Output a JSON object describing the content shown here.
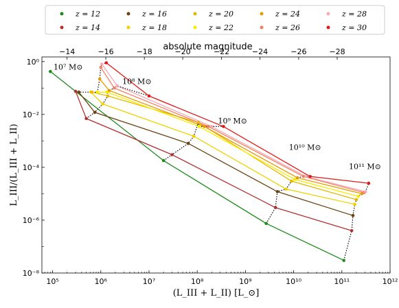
{
  "chart_data": {
    "type": "line",
    "xscale": "log",
    "yscale": "log",
    "xlabel": "(L_III + L_II) [L_⊙]",
    "ylabel": "L_III/(L_III + L_II)",
    "xlim": [
      60000,
      1000000000000
    ],
    "ylim": [
      1e-08,
      1.5
    ],
    "x_ticks": [
      {
        "value": 100000,
        "label": "10⁵"
      },
      {
        "value": 1000000,
        "label": "10⁶"
      },
      {
        "value": 10000000,
        "label": "10⁷"
      },
      {
        "value": 100000000,
        "label": "10⁸"
      },
      {
        "value": 1000000000,
        "label": "10⁹"
      },
      {
        "value": 10000000000,
        "label": "10¹⁰"
      },
      {
        "value": 100000000000,
        "label": "10¹¹"
      },
      {
        "value": 1000000000000,
        "label": "10¹²"
      }
    ],
    "y_ticks": [
      {
        "value": 1e-08,
        "label": "10⁻⁸"
      },
      {
        "value": 1e-06,
        "label": "10⁻⁶"
      },
      {
        "value": 0.0001,
        "label": "10⁻⁴"
      },
      {
        "value": 0.01,
        "label": "10⁻²"
      },
      {
        "value": 1,
        "label": "10⁰"
      }
    ],
    "top_axis": {
      "label": "absolute magnitude",
      "ticks": [
        {
          "value": -14,
          "label": "−14",
          "x": 200000
        },
        {
          "value": -16,
          "label": "−16",
          "x": 1270000
        },
        {
          "value": -18,
          "label": "−18",
          "x": 8000000
        },
        {
          "value": -20,
          "label": "−20",
          "x": 50000000
        },
        {
          "value": -22,
          "label": "−22",
          "x": 320000000
        },
        {
          "value": -24,
          "label": "−24",
          "x": 2000000000
        },
        {
          "value": -26,
          "label": "−26",
          "x": 12700000000
        },
        {
          "value": -28,
          "label": "−28",
          "x": 80000000000
        }
      ]
    },
    "mass_labels": [
      {
        "text": "10⁷ M⊙",
        "x": 105000,
        "y": 0.5
      },
      {
        "text": "10⁸ M⊙",
        "x": 2800000,
        "y": 0.14
      },
      {
        "text": "10⁹ M⊙",
        "x": 270000000,
        "y": 0.0045
      },
      {
        "text": "10¹⁰ M⊙",
        "x": 8000000000,
        "y": 0.00045
      },
      {
        "text": "10¹¹ M⊙",
        "x": 140000000000,
        "y": 8.5e-05
      }
    ],
    "legend_placement": "top",
    "series": [
      {
        "name": "z = 12",
        "color": "#1a8a1a",
        "x": [
          90000,
          20000000,
          2700000000,
          110000000000
        ],
        "y": [
          0.42,
          0.00018,
          7.5e-07,
          3e-08
        ]
      },
      {
        "name": "z = 14",
        "color": "#b03030",
        "x": [
          300000,
          500000,
          30000000,
          4200000000,
          160000000000
        ],
        "y": [
          0.075,
          0.007,
          0.0003,
          3e-06,
          4e-07
        ]
      },
      {
        "name": "z = 16",
        "color": "#6b4210",
        "x": [
          350000,
          750000,
          65000000,
          4600000000,
          170000000000
        ],
        "y": [
          0.07,
          0.012,
          0.0008,
          1.2e-05,
          1.5e-06
        ]
      },
      {
        "name": "z = 18",
        "color": "#f0d000",
        "x": [
          620000,
          1100000,
          85000000,
          7000000000,
          185000000000
        ],
        "y": [
          0.07,
          0.025,
          0.0015,
          1.5e-05,
          4e-06
        ]
      },
      {
        "name": "z = 20",
        "color": "#e8b800",
        "x": [
          650000,
          1400000,
          105000000,
          9000000000,
          200000000000
        ],
        "y": [
          0.07,
          0.05,
          0.005,
          3e-05,
          6e-06
        ]
      },
      {
        "name": "z = 22",
        "color": "#f7ec00",
        "x": [
          850000,
          1350000,
          110000000,
          10500000000,
          220000000000
        ],
        "y": [
          0.07,
          0.07,
          0.0035,
          3.5e-05,
          8e-06
        ]
      },
      {
        "name": "z = 24",
        "color": "#e89a00",
        "x": [
          950000,
          1500000,
          140000000,
          12000000000,
          260000000000
        ],
        "y": [
          0.22,
          0.08,
          0.0035,
          4e-05,
          1e-05
        ]
      },
      {
        "name": "z = 26",
        "color": "#f28060",
        "x": [
          1000000,
          1900000,
          170000000,
          16000000000,
          290000000000
        ],
        "y": [
          0.6,
          0.1,
          0.0035,
          4.5e-05,
          1.1e-05
        ]
      },
      {
        "name": "z = 28",
        "color": "#f5aab4",
        "x": [
          1050000,
          2200000,
          200000000,
          18000000000,
          310000000000
        ],
        "y": [
          0.8,
          0.12,
          0.0035,
          4.5e-05,
          1.2e-05
        ]
      },
      {
        "name": "z = 30",
        "color": "#e01818",
        "x": [
          1300000,
          10000000,
          350000000,
          22000000000,
          360000000000
        ],
        "y": [
          0.9,
          0.05,
          0.0035,
          4.5e-05,
          2.5e-05
        ]
      }
    ],
    "connectors": [
      {
        "x": [
          300000,
          350000,
          620000,
          650000,
          850000,
          950000,
          1000000,
          1050000,
          1300000
        ],
        "y": [
          0.075,
          0.07,
          0.07,
          0.07,
          0.07,
          0.22,
          0.6,
          0.8,
          0.9
        ]
      },
      {
        "x": [
          500000,
          750000,
          1100000,
          1400000,
          1350000,
          1500000,
          1900000,
          2200000,
          10000000
        ],
        "y": [
          0.007,
          0.012,
          0.025,
          0.05,
          0.07,
          0.08,
          0.1,
          0.12,
          0.05
        ]
      },
      {
        "x": [
          20000000,
          30000000,
          65000000,
          85000000,
          105000000,
          110000000,
          140000000,
          170000000,
          200000000,
          350000000
        ],
        "y": [
          0.00018,
          0.0003,
          0.0008,
          0.0015,
          0.005,
          0.0035,
          0.0035,
          0.0035,
          0.0035,
          0.0035
        ]
      },
      {
        "x": [
          2700000000,
          4200000000,
          4600000000,
          7000000000,
          9000000000,
          10500000000,
          12000000000,
          16000000000,
          18000000000,
          22000000000
        ],
        "y": [
          7.5e-07,
          3e-06,
          1.2e-05,
          1.5e-05,
          3e-05,
          3.5e-05,
          4e-05,
          4.5e-05,
          4.5e-05,
          4.5e-05
        ]
      },
      {
        "x": [
          110000000000,
          160000000000,
          170000000000,
          185000000000,
          200000000000,
          220000000000,
          260000000000,
          290000000000,
          310000000000,
          360000000000
        ],
        "y": [
          3e-08,
          4e-07,
          1.5e-06,
          4e-06,
          6e-06,
          8e-06,
          1e-05,
          1.1e-05,
          1.2e-05,
          2.5e-05
        ]
      }
    ]
  }
}
